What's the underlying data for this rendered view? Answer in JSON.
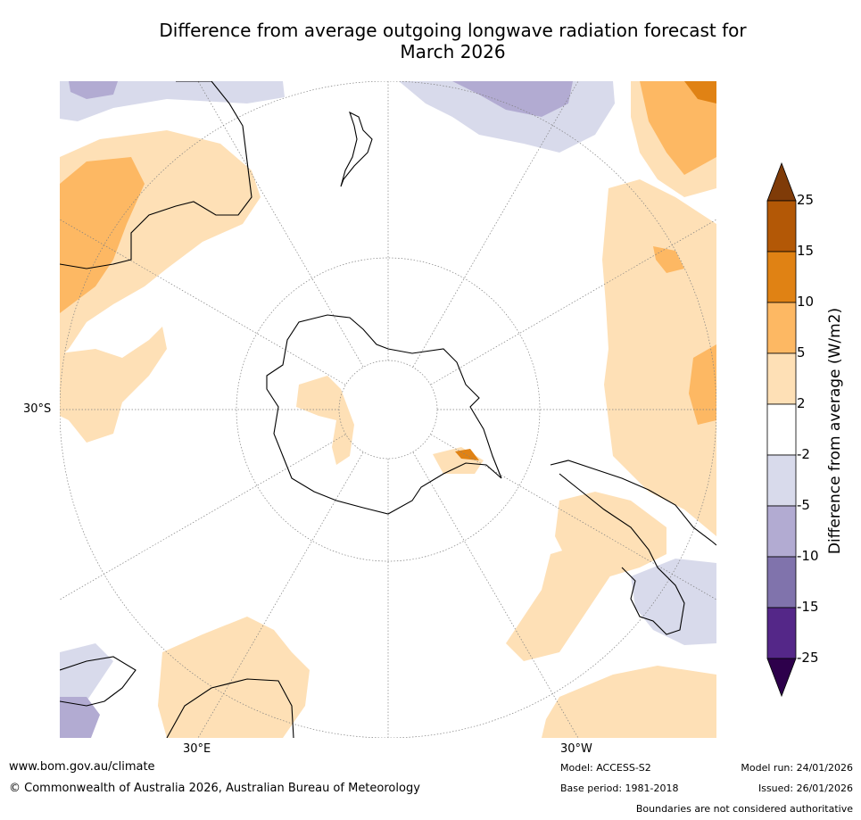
{
  "title_line1": "Difference from average outgoing longwave radiation forecast for",
  "title_line2": "March 2026",
  "map": {
    "projection": "South polar stereographic",
    "lat_label": "30°S",
    "lon_labels": [
      "30°E",
      "30°W"
    ]
  },
  "colorbar": {
    "label": "Difference from average (W/m2)",
    "ticks": [
      "25",
      "15",
      "10",
      "5",
      "2",
      "-2",
      "-5",
      "-10",
      "-15",
      "-25"
    ],
    "colors": {
      "above_25": "#7f3b08",
      "c15_25": "#b35806",
      "c10_15": "#e08214",
      "c5_10": "#fdb863",
      "c2_5": "#fee0b6",
      "cm2_2": "#ffffff",
      "cm5_m2": "#d8daeb",
      "cm10_m5": "#b2abd2",
      "cm15_m10": "#8073ac",
      "cm25_m15": "#542788",
      "below_m25": "#2d004b"
    }
  },
  "footer": {
    "url": "www.bom.gov.au/climate",
    "copyright": "© Commonwealth of Australia 2026, Australian Bureau of Meteorology",
    "model": "Model: ACCESS-S2",
    "base_period": "Base period: 1981-2018",
    "model_run": "Model run: 24/01/2026",
    "issued": "Issued: 26/01/2026",
    "disclaimer": "Boundaries are not considered authoritative"
  }
}
